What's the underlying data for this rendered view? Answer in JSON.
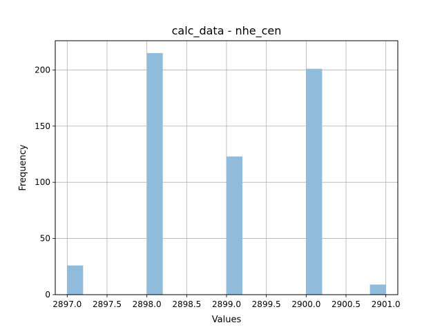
{
  "chart_data": {
    "type": "bar",
    "title": "calc_data - nhe_cen",
    "xlabel": "Values",
    "ylabel": "Frequency",
    "xlim": [
      2896.85,
      2901.15
    ],
    "ylim": [
      0,
      226
    ],
    "xticks": [
      2897.0,
      2897.5,
      2898.0,
      2898.5,
      2899.0,
      2899.5,
      2900.0,
      2900.5,
      2901.0
    ],
    "xtick_labels": [
      "2897.0",
      "2897.5",
      "2898.0",
      "2898.5",
      "2899.0",
      "2899.5",
      "2900.0",
      "2900.5",
      "2901.0"
    ],
    "yticks": [
      0,
      50,
      100,
      150,
      200
    ],
    "ytick_labels": [
      "0",
      "50",
      "100",
      "150",
      "200"
    ],
    "grid": true,
    "bar_color": "#91bbdb",
    "bins": [
      {
        "x0": 2897.0,
        "x1": 2897.2,
        "value": 26
      },
      {
        "x0": 2898.0,
        "x1": 2898.2,
        "value": 215
      },
      {
        "x0": 2899.0,
        "x1": 2899.2,
        "value": 123
      },
      {
        "x0": 2900.0,
        "x1": 2900.2,
        "value": 201
      },
      {
        "x0": 2900.8,
        "x1": 2901.0,
        "value": 9
      }
    ]
  }
}
